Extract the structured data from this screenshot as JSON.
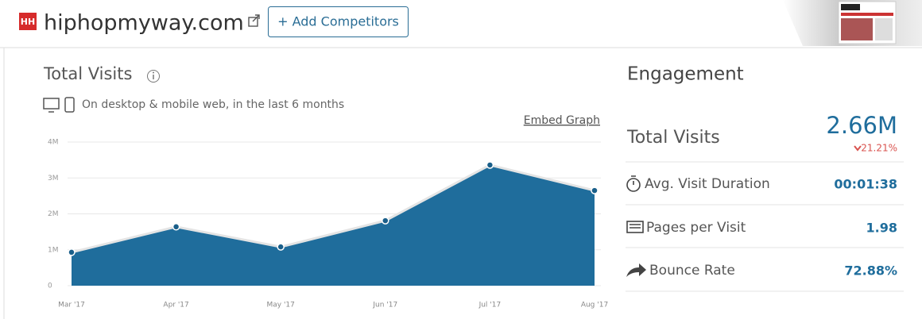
{
  "header": {
    "logo": "HH",
    "site": "hiphopmyway.com",
    "add_button": "+ Add Competitors"
  },
  "visits": {
    "title": "Total Visits",
    "subtitle": "On desktop & mobile web, in the last 6 months",
    "embed": "Embed Graph"
  },
  "chart_data": {
    "type": "area",
    "color": "#1f6d9c",
    "categories": [
      "Mar '17",
      "Apr '17",
      "May '17",
      "Jun '17",
      "Jul '17",
      "Aug '17"
    ],
    "values": [
      930000,
      1640000,
      1080000,
      1810000,
      3360000,
      2650000
    ],
    "ylim": [
      0,
      4000000
    ],
    "yticks": [
      0,
      {
        "value": 1000000,
        "label": "1M"
      },
      {
        "value": 2000000,
        "label": "2M"
      },
      {
        "value": 3000000,
        "label": "3M"
      },
      {
        "value": 4000000,
        "label": "4M"
      }
    ],
    "grid": true
  },
  "engagement": {
    "title": "Engagement",
    "total": {
      "label": "Total Visits",
      "value": "2.66M",
      "change": "21.21%"
    },
    "rows": [
      {
        "label": "Avg. Visit Duration",
        "value": "00:01:38"
      },
      {
        "label": "Pages per Visit",
        "value": "1.98"
      },
      {
        "label": "Bounce Rate",
        "value": "72.88%"
      }
    ]
  }
}
